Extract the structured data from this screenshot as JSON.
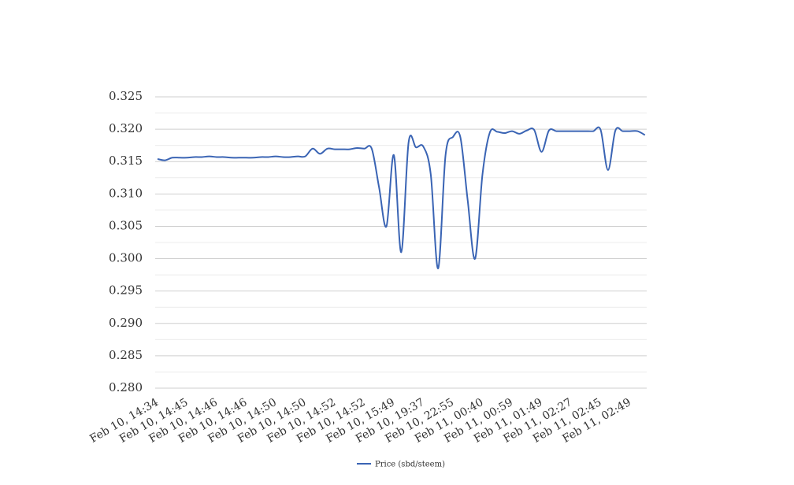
{
  "chart_data": {
    "type": "line",
    "categories": [
      "Feb 10, 14:34",
      null,
      null,
      null,
      "Feb 10, 14:45",
      null,
      null,
      null,
      "Feb 10, 14:46",
      null,
      null,
      null,
      "Feb 10, 14:46",
      null,
      null,
      null,
      "Feb 10, 14:50",
      null,
      null,
      null,
      "Feb 10, 14:50",
      null,
      null,
      null,
      "Feb 10, 14:52",
      null,
      null,
      null,
      "Feb 10, 14:52",
      null,
      null,
      null,
      "Feb 10, 15:49",
      null,
      null,
      null,
      "Feb 10, 19:37",
      null,
      null,
      null,
      "Feb 10, 22:55",
      null,
      null,
      null,
      "Feb 11, 00:40",
      null,
      null,
      null,
      "Feb 11, 00:59",
      null,
      null,
      null,
      "Feb 11, 01:49",
      null,
      null,
      null,
      "Feb 11, 02:27",
      null,
      null,
      null,
      "Feb 11, 02:45",
      null,
      null,
      null,
      "Feb 11, 02:49",
      null,
      null
    ],
    "series": [
      {
        "name": "Price (sbd/steem)",
        "color": "#3a64b4",
        "values": [
          0.3154,
          0.3152,
          0.3156,
          0.3156,
          0.3156,
          0.3157,
          0.3157,
          0.3158,
          0.3157,
          0.3157,
          0.3156,
          0.3156,
          0.3156,
          0.3156,
          0.3157,
          0.3157,
          0.3158,
          0.3157,
          0.3157,
          0.3158,
          0.3158,
          0.317,
          0.3162,
          0.317,
          0.3169,
          0.3169,
          0.3169,
          0.3171,
          0.317,
          0.317,
          0.311,
          0.305,
          0.316,
          0.301,
          0.318,
          0.3172,
          0.3173,
          0.313,
          0.2985,
          0.316,
          0.3188,
          0.3188,
          0.309,
          0.3,
          0.313,
          0.3195,
          0.3196,
          0.3194,
          0.3197,
          0.3193,
          0.3198,
          0.3199,
          0.3165,
          0.3198,
          0.3197,
          0.3197,
          0.3197,
          0.3197,
          0.3197,
          0.3197,
          0.3199,
          0.3137,
          0.3198,
          0.3197,
          0.3197,
          0.3197,
          0.3191
        ]
      }
    ],
    "ylim": [
      0.28,
      0.325
    ],
    "yticks": [
      {
        "value": 0.28,
        "label": "0.280"
      },
      {
        "value": 0.285,
        "label": "0.285"
      },
      {
        "value": 0.29,
        "label": "0.290"
      },
      {
        "value": 0.295,
        "label": "0.295"
      },
      {
        "value": 0.3,
        "label": "0.300"
      },
      {
        "value": 0.305,
        "label": "0.305"
      },
      {
        "value": 0.31,
        "label": "0.310"
      },
      {
        "value": 0.315,
        "label": "0.315"
      },
      {
        "value": 0.32,
        "label": "0.320"
      },
      {
        "value": 0.325,
        "label": "0.325"
      }
    ],
    "minor_yticks": [
      0.2825,
      0.2875,
      0.2925,
      0.2975,
      0.3025,
      0.3075,
      0.3125,
      0.3175,
      0.3225
    ],
    "grid": true,
    "legend": "bottom"
  }
}
